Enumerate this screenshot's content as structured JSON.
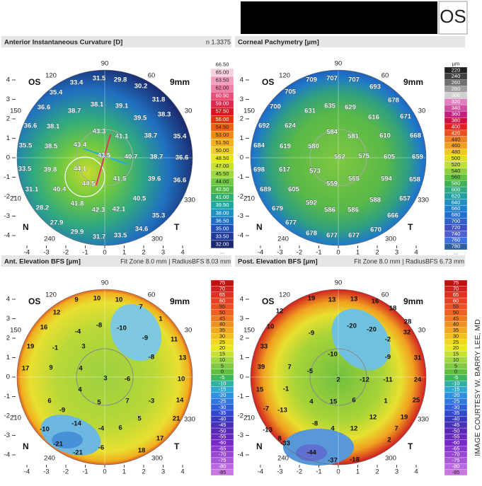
{
  "header": {
    "eye": "OS"
  },
  "credit": "IMAGE COURTESY W. BARRY LEE, MD",
  "map_axes": {
    "eye": "OS",
    "size": "9mm",
    "nasal": "N",
    "temporal": "T",
    "degrees": [
      90,
      120,
      60,
      150,
      30,
      210,
      330,
      240,
      300
    ],
    "ticks": [
      4,
      3,
      2,
      1,
      0,
      -1,
      -2,
      -3,
      -4
    ]
  },
  "panels": [
    {
      "title": "Anterior Instantaneous Curvature [D]",
      "info": "n 1.3375",
      "values": [
        31.5,
        29.8,
        33.4,
        30.2,
        35.4,
        31.8,
        36.6,
        38.1,
        39.1,
        38.7,
        39.5,
        38.3,
        36.6,
        38.1,
        43.3,
        41.1,
        38.7,
        35.4,
        43.4,
        35.5,
        38.5,
        43.5,
        40.7,
        38.7,
        36.6,
        44.1,
        33.5,
        39.8,
        41.5,
        39.6,
        36.6,
        44.5,
        40.4,
        31.1,
        40.5,
        41.8,
        28.2,
        42.3,
        42.1,
        35.3,
        27.9,
        34.6,
        29.9,
        31.7,
        33.5
      ],
      "scale": {
        "labels": [
          "66.50",
          "65.00",
          "63.50",
          "62.00",
          "60.50",
          "59.00",
          "57.50",
          "56.00",
          "54.50",
          "53.00",
          "51.50",
          "50.00",
          "48.50",
          "47.00",
          "45.50",
          "44.00",
          "42.50",
          "41.00",
          "39.50",
          "38.00",
          "36.50",
          "35.00",
          "33.50",
          "32.00",
          "..."
        ],
        "colors": [
          "#ffffff",
          "#f7d0e0",
          "#f2a0c0",
          "#ee80a8",
          "#e85078",
          "#e02850",
          "#e01020",
          "#e83010",
          "#f06010",
          "#f58a10",
          "#f5b020",
          "#f0d020",
          "#e8e820",
          "#c8e030",
          "#a0d840",
          "#70c840",
          "#50b848",
          "#30b070",
          "#20a8a0",
          "#2090c0",
          "#2070c8",
          "#2050b8",
          "#203a98",
          "#1a2870",
          "#ffffff"
        ]
      }
    },
    {
      "title": "Corneal Pachymetry [µm]",
      "values": [
        709,
        707,
        707,
        693,
        705,
        678,
        700,
        631,
        635,
        629,
        616,
        671,
        692,
        624,
        584,
        581,
        610,
        668,
        684,
        619,
        580,
        562,
        575,
        605,
        659,
        698,
        617,
        573,
        565,
        594,
        658,
        559,
        689,
        605,
        592,
        586,
        586,
        588,
        657,
        679,
        666,
        677,
        678,
        677,
        677,
        670
      ],
      "scale": {
        "labels": [
          "µm",
          220,
          240,
          260,
          280,
          300,
          320,
          340,
          360,
          380,
          400,
          420,
          440,
          460,
          480,
          500,
          520,
          540,
          560,
          580,
          600,
          620,
          640,
          660,
          680,
          700,
          720,
          740,
          760,
          780,
          "..."
        ],
        "colors": [
          "#ffffff",
          "#202020",
          "#404040",
          "#707070",
          "#a0a0a0",
          "#d0d0d0",
          "#e080c0",
          "#d050a0",
          "#c02080",
          "#d01040",
          "#e02020",
          "#e85020",
          "#f08020",
          "#f0a020",
          "#f0c820",
          "#e0e020",
          "#c0e030",
          "#90d040",
          "#60c040",
          "#40b050",
          "#30a880",
          "#20a0a0",
          "#2090c0",
          "#2080d0",
          "#2070d0",
          "#3060c8",
          "#4050c0",
          "#5060d0",
          "#4070e0",
          "#3060a0",
          "#ffffff"
        ]
      }
    },
    {
      "title": "Ant. Elevation BFS [µm]",
      "info": "Fit Zone 8.0 mm | RadiusBFS 8.03 mm",
      "values": [
        9,
        10,
        10,
        7,
        12,
        1,
        16,
        -8,
        -10,
        19,
        -4,
        -1,
        3,
        -9,
        11,
        17,
        9,
        4,
        3,
        -6,
        -8,
        4,
        5,
        -3,
        10,
        13,
        6,
        14,
        -9,
        -14,
        7,
        5,
        21,
        -10,
        -4,
        6,
        17,
        -21,
        -21,
        -6,
        18
      ],
      "scale": {
        "labels": [
          75,
          70,
          65,
          60,
          55,
          50,
          45,
          40,
          35,
          30,
          25,
          20,
          15,
          10,
          5,
          0,
          -5,
          -10,
          -15,
          -20,
          -25,
          -30,
          -35,
          -40,
          -45,
          -50,
          -55,
          -60,
          -65,
          -70,
          -75,
          -80,
          -85
        ],
        "colors": [
          "#c01010",
          "#d02020",
          "#e03020",
          "#e84020",
          "#f05020",
          "#f06020",
          "#f07820",
          "#f09020",
          "#f0a820",
          "#f0c020",
          "#f0d820",
          "#e8e820",
          "#c8e030",
          "#a0d840",
          "#80c840",
          "#60c040",
          "#40b860",
          "#30b0a0",
          "#30a8d0",
          "#3090e0",
          "#3078e0",
          "#3060d8",
          "#3048d0",
          "#3838c0",
          "#4830b8",
          "#5828b8",
          "#6828c0",
          "#7828c8",
          "#8838d0",
          "#9848d0",
          "#a858d8",
          "#b868e0",
          "#c878e0"
        ]
      }
    },
    {
      "title": "Post. Elevation BFS [µm]",
      "info": "Fit Zone 8.0 mm | RadiusBFS 6.73 mm",
      "values": [
        19,
        13,
        13,
        16,
        18,
        28,
        12,
        10,
        -9,
        -20,
        -20,
        -2,
        32,
        33,
        -10,
        -9,
        31,
        39,
        7,
        -5,
        2,
        -12,
        -11,
        24,
        15,
        -1,
        15,
        6,
        1,
        25,
        -7,
        -13,
        4,
        12,
        19,
        -8,
        4,
        12,
        7,
        -13,
        8,
        -33,
        -44,
        -37,
        -18,
        2
      ],
      "scale": {
        "labels": [
          75,
          70,
          65,
          60,
          55,
          50,
          45,
          40,
          35,
          30,
          25,
          20,
          15,
          10,
          5,
          0,
          -5,
          -10,
          -15,
          -20,
          -25,
          -30,
          -35,
          -40,
          -45,
          -50,
          -55,
          -60,
          -65,
          -70,
          -75,
          -80,
          -85
        ],
        "colors": [
          "#c01010",
          "#d02020",
          "#e03020",
          "#e84020",
          "#f05020",
          "#f06020",
          "#f07820",
          "#f09020",
          "#f0a820",
          "#f0c020",
          "#f0d820",
          "#e8e820",
          "#c8e030",
          "#a0d840",
          "#80c840",
          "#60c040",
          "#40b860",
          "#30b0a0",
          "#30a8d0",
          "#3090e0",
          "#3078e0",
          "#3060d8",
          "#3048d0",
          "#3838c0",
          "#4830b8",
          "#5828b8",
          "#6828c0",
          "#7828c8",
          "#8838d0",
          "#9848d0",
          "#a858d8",
          "#b868e0",
          "#c878e0"
        ]
      }
    }
  ]
}
